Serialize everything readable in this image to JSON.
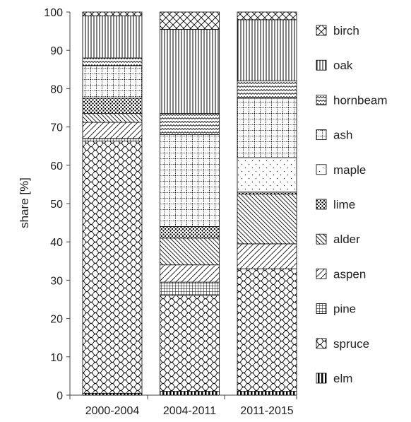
{
  "chart_data": {
    "type": "bar",
    "stacked": true,
    "ylabel": "share [%]",
    "xlabel": "",
    "ylim": [
      0,
      100
    ],
    "yticks": [
      0,
      10,
      20,
      30,
      40,
      50,
      60,
      70,
      80,
      90,
      100
    ],
    "categories": [
      "2000-2004",
      "2004-2011",
      "2011-2015"
    ],
    "legend_position": "right",
    "series": [
      {
        "name": "elm",
        "values": [
          0.5,
          1.0,
          1.0
        ]
      },
      {
        "name": "spruce",
        "values": [
          65.8,
          25.0,
          32.0
        ]
      },
      {
        "name": "pine",
        "values": [
          0.7,
          3.5,
          0.0
        ]
      },
      {
        "name": "aspen",
        "values": [
          4.2,
          4.5,
          6.5
        ]
      },
      {
        "name": "alder",
        "values": [
          2.3,
          7.0,
          13.0
        ]
      },
      {
        "name": "lime",
        "values": [
          4.0,
          3.0,
          0.5
        ]
      },
      {
        "name": "maple",
        "values": [
          0.0,
          0.0,
          9.0
        ]
      },
      {
        "name": "ash",
        "values": [
          8.5,
          24.0,
          15.5
        ]
      },
      {
        "name": "hornbeam",
        "values": [
          2.0,
          5.5,
          4.5
        ]
      },
      {
        "name": "oak",
        "values": [
          11.0,
          22.0,
          16.0
        ]
      },
      {
        "name": "birch",
        "values": [
          1.0,
          4.5,
          2.0
        ]
      }
    ],
    "legend": [
      "birch",
      "oak",
      "hornbeam",
      "ash",
      "maple",
      "lime",
      "alder",
      "aspen",
      "pine",
      "spruce",
      "elm"
    ]
  }
}
